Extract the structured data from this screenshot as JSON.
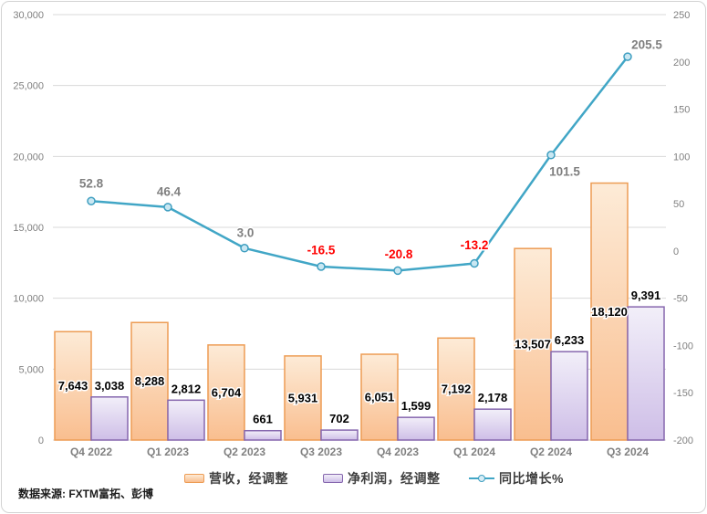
{
  "chart": {
    "source_note": "数据来源: FXTM富拓、彭博",
    "legend": {
      "position": "bottom",
      "items": [
        {
          "label": "营收，经调整",
          "swatch": "bar-orange"
        },
        {
          "label": "净利润，经调整",
          "swatch": "bar-purple"
        },
        {
          "label": "同比增长%",
          "swatch": "line-marker"
        }
      ]
    }
  },
  "chart_data": {
    "type": "combo-bar-line",
    "categories": [
      "Q4 2022",
      "Q1 2023",
      "Q2 2023",
      "Q3 2023",
      "Q4 2023",
      "Q1 2024",
      "Q2 2024",
      "Q3 2024"
    ],
    "series": [
      {
        "name": "营收，经调整",
        "type": "bar",
        "axis": "left",
        "values": [
          7643,
          8288,
          6704,
          5931,
          6051,
          7192,
          13507,
          18120
        ],
        "label_position": "center"
      },
      {
        "name": "净利润，经调整",
        "type": "bar",
        "axis": "left",
        "values": [
          3038,
          2812,
          661,
          702,
          1599,
          2178,
          6233,
          9391
        ],
        "label_position": "outside-end"
      },
      {
        "name": "同比增长%",
        "type": "line",
        "axis": "right",
        "values": [
          52.8,
          46.4,
          3.0,
          -16.5,
          -20.8,
          -13.2,
          101.5,
          205.5
        ],
        "label_offsets": [
          [
            0,
            -19
          ],
          [
            1,
            -17
          ],
          [
            1,
            -17
          ],
          [
            0,
            -18
          ],
          [
            1,
            -18
          ],
          [
            0,
            -20
          ],
          [
            15,
            18
          ],
          [
            21,
            -13
          ]
        ]
      }
    ],
    "left_axis": {
      "min": 0,
      "max": 30000,
      "step": 5000,
      "tick_labels": [
        "0",
        "5,000",
        "10,000",
        "15,000",
        "20,000",
        "25,000",
        "30,000"
      ]
    },
    "right_axis": {
      "min": -200,
      "max": 250,
      "step": 50,
      "tick_labels": [
        "-200",
        "-150",
        "-100",
        "-50",
        "0",
        "50",
        "100",
        "150",
        "200",
        "250"
      ]
    },
    "grid": true,
    "legend_position": "bottom",
    "colors": {
      "revenue_fill_top": "#FDEBD7",
      "revenue_fill_bottom": "#F9BE8F",
      "revenue_border": "#ED9C54",
      "profit_fill_top": "#F2EFF9",
      "profit_fill_bottom": "#CEBEE7",
      "profit_border": "#8667AE",
      "growth_line": "#41A6C6",
      "marker_fill": "#C9E7F2",
      "marker_stroke": "#3E9EC0",
      "grid": "#D9D9D9",
      "axis_text": "#808080",
      "bar_label": "#000000",
      "line_label_positive": "#7F7F7F",
      "line_label_negative": "#FF0000"
    }
  }
}
